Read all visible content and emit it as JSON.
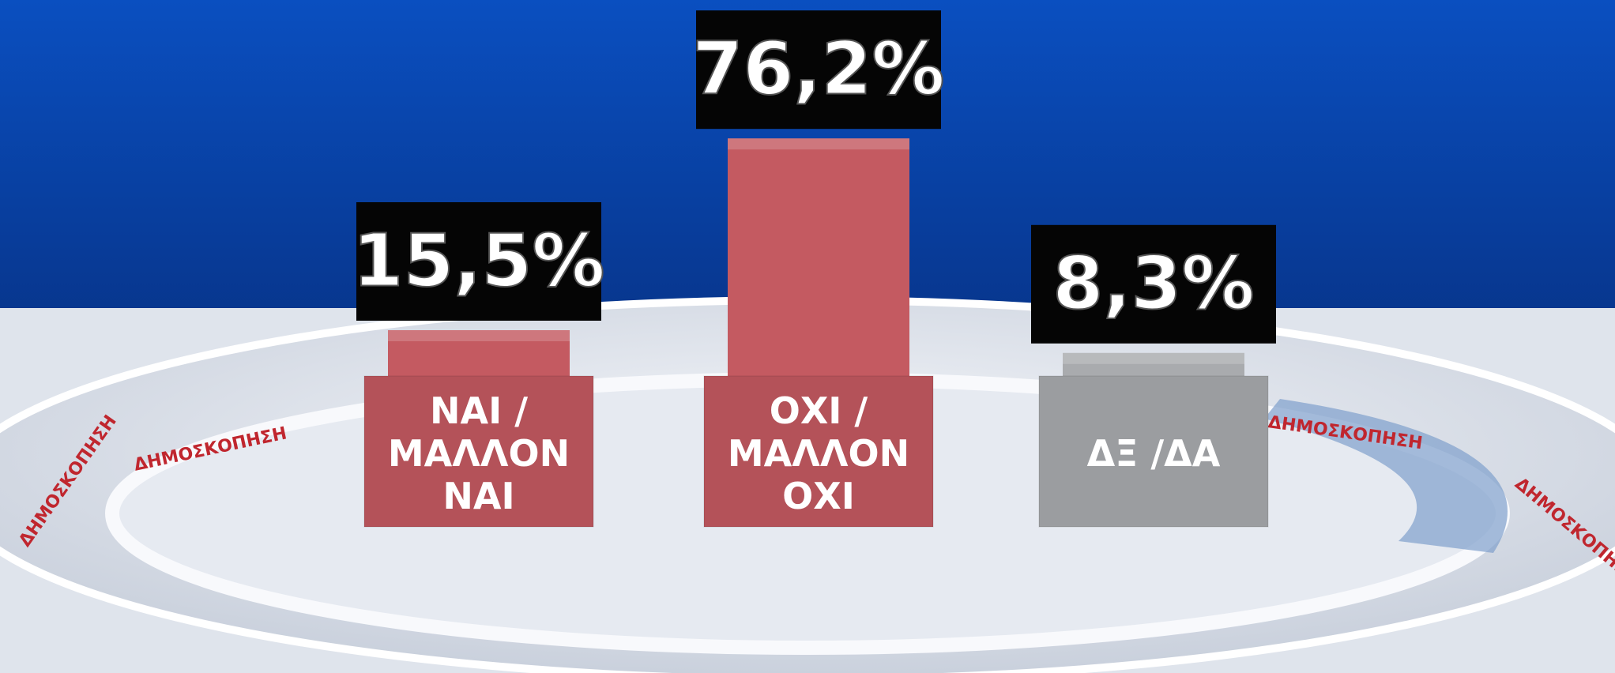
{
  "chart_data": {
    "type": "bar",
    "categories": [
      "ΝΑΙ / ΜΑΛΛΟΝ ΝΑΙ",
      "ΟΧΙ / ΜΑΛΛΟΝ ΟΧΙ",
      "ΔΞ /ΔΑ"
    ],
    "values": [
      15.5,
      76.2,
      8.3
    ],
    "value_labels": [
      "15,5%",
      "76,2%",
      "8,3%"
    ],
    "colors": [
      "#c45a61",
      "#c45a61",
      "#a9abae"
    ]
  },
  "ring_text": "ΔΗΜΟΣΚΟΠΗΣΗ"
}
